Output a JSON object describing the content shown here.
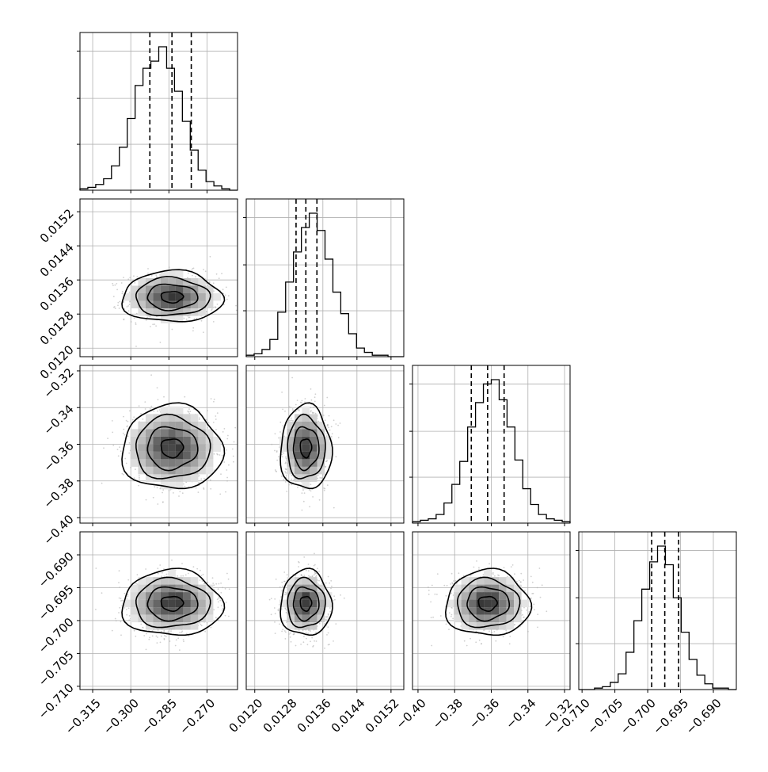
{
  "chart_data": {
    "type": "corner",
    "parameters": [
      {
        "range": [
          -0.32,
          -0.258
        ],
        "ticks": [
          -0.315,
          -0.3,
          -0.285,
          -0.27
        ],
        "tick_labels": [
          "−0.315",
          "−0.300",
          "−0.285",
          "−0.270"
        ],
        "quantiles": [
          -0.2925,
          -0.2838,
          -0.2762
        ],
        "mean": -0.2838,
        "sd": 0.0079
      },
      {
        "range": [
          0.0118,
          0.0155
        ],
        "ticks": [
          0.012,
          0.0128,
          0.0136,
          0.0144,
          0.0152
        ],
        "tick_labels": [
          "0.0120",
          "0.0128",
          "0.0136",
          "0.0144",
          "0.0152"
        ],
        "quantiles": [
          0.01297,
          0.0132,
          0.01346
        ],
        "mean": 0.0132,
        "sd": 0.00024
      },
      {
        "range": [
          -0.403,
          -0.317
        ],
        "ticks": [
          -0.4,
          -0.38,
          -0.36,
          -0.34,
          -0.32
        ],
        "tick_labels": [
          "−0.40",
          "−0.38",
          "−0.36",
          "−0.34",
          "−0.32"
        ],
        "quantiles": [
          -0.3709,
          -0.362,
          -0.353
        ],
        "mean": -0.362,
        "sd": 0.0092
      },
      {
        "range": [
          -0.7105,
          -0.6865
        ],
        "ticks": [
          -0.71,
          -0.705,
          -0.7,
          -0.695,
          -0.69
        ],
        "tick_labels": [
          "−0.710",
          "−0.705",
          "−0.700",
          "−0.695",
          "−0.690"
        ],
        "quantiles": [
          -0.6994,
          -0.6974,
          -0.6953
        ],
        "mean": -0.6974,
        "sd": 0.002
      }
    ],
    "histograms": [
      {
        "counts": [
          1,
          2,
          4,
          8,
          17,
          30,
          50,
          73,
          85,
          90,
          100,
          85,
          69,
          48,
          28,
          14,
          6,
          3,
          1,
          0
        ]
      },
      {
        "counts": [
          1,
          2,
          5,
          12,
          31,
          52,
          73,
          90,
          100,
          88,
          68,
          45,
          30,
          16,
          6,
          3,
          1,
          1,
          0,
          0
        ]
      },
      {
        "counts": [
          1,
          2,
          3,
          6,
          14,
          27,
          43,
          67,
          84,
          97,
          100,
          86,
          67,
          44,
          24,
          13,
          6,
          3,
          2,
          1
        ]
      },
      {
        "counts": [
          0,
          0,
          1,
          2,
          5,
          11,
          26,
          48,
          70,
          89,
          100,
          87,
          64,
          40,
          21,
          10,
          4,
          1,
          1,
          0
        ]
      }
    ],
    "grid": true,
    "scatter_color": "#b0b0b0",
    "contour_color": "#000000"
  }
}
